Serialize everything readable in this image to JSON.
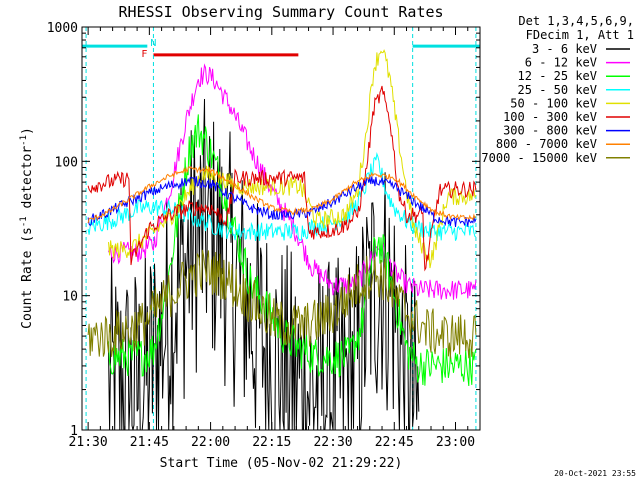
{
  "chart_data": {
    "type": "line",
    "title": "RHESSI Observing Summary Count Rates",
    "xlabel": "Start Time (05-Nov-02 21:29:22)",
    "ylabel": "Count Rate (s",
    "ylabel_sup": "-1",
    "ylabel_mid": " detector",
    "ylabel_sup2": "-1",
    "ylabel_end": ")",
    "y_scale": "log",
    "xlim": [
      -1.5,
      96
    ],
    "ylim": [
      1,
      1000
    ],
    "x_ticks": [
      {
        "value": 0,
        "label": "21:30"
      },
      {
        "value": 15,
        "label": "21:45"
      },
      {
        "value": 30,
        "label": "22:00"
      },
      {
        "value": 45,
        "label": "22:15"
      },
      {
        "value": 60,
        "label": "22:30"
      },
      {
        "value": 75,
        "label": "22:45"
      },
      {
        "value": 90,
        "label": "23:00"
      }
    ],
    "y_ticks": [
      {
        "value": 1,
        "label": "1"
      },
      {
        "value": 10,
        "label": "10"
      },
      {
        "value": 100,
        "label": "100"
      },
      {
        "value": 1000,
        "label": "1000"
      }
    ],
    "legend_header": [
      "Det 1,3,4,5,6,9,",
      "FDecim 1, Att 1"
    ],
    "flags": [
      {
        "label": "N",
        "color": "#00e0e0",
        "intervals": [
          [
            -1.5,
            14.5
          ],
          [
            79.5,
            96
          ]
        ],
        "y": 720
      },
      {
        "label": "F",
        "color": "#e00000",
        "intervals": [
          [
            16,
            51.5
          ]
        ],
        "y": 620
      }
    ],
    "vlines": [
      -0.5,
      16,
      79.5,
      95
    ],
    "series": [
      {
        "name": "3 - 6 keV",
        "color": "#000000",
        "amp": 1.0,
        "x": [
          5,
          9,
          13,
          17,
          21,
          26,
          29,
          33,
          37,
          41,
          45,
          49,
          53,
          57,
          62,
          66,
          69,
          72,
          75,
          77,
          79,
          81
        ],
        "y": [
          2,
          2,
          2,
          4,
          10,
          24,
          31,
          22,
          12,
          6,
          3.5,
          2.5,
          2,
          2,
          2,
          3,
          10,
          15,
          8,
          3,
          1.8,
          1.2
        ]
      },
      {
        "name": "6 - 12 keV",
        "color": "#ff00ff",
        "amp": 0.08,
        "x": [
          5,
          9,
          12,
          16,
          20,
          24,
          27,
          29,
          31,
          35,
          40,
          45,
          50,
          55,
          60,
          65,
          67,
          69,
          71,
          73,
          75,
          78,
          81,
          84,
          88,
          92,
          95
        ],
        "y": [
          21,
          21,
          21,
          24,
          60,
          200,
          420,
          450,
          400,
          250,
          120,
          60,
          34,
          16,
          12,
          12,
          14,
          18,
          23,
          20,
          15,
          12,
          11,
          11,
          11,
          11,
          11
        ]
      },
      {
        "name": "12 - 25 keV",
        "color": "#00ff00",
        "amp": 0.15,
        "x": [
          5,
          9,
          13,
          16,
          19,
          23,
          25,
          27,
          29,
          32,
          36,
          40,
          44,
          48,
          52,
          56,
          60,
          64,
          67,
          69,
          71,
          73,
          75,
          78,
          81,
          84,
          88,
          92,
          95
        ],
        "y": [
          3.5,
          3.5,
          3.5,
          4,
          10,
          60,
          130,
          170,
          140,
          80,
          30,
          12,
          8,
          5,
          4,
          3.5,
          3.5,
          3.5,
          6,
          15,
          26,
          18,
          10,
          4,
          3,
          3,
          3,
          3,
          3
        ]
      },
      {
        "name": "25 - 50 keV",
        "color": "#00ffff",
        "amp": 0.07,
        "x": [
          0,
          5,
          9,
          12,
          16,
          20,
          24,
          28,
          32,
          36,
          40,
          44,
          48,
          52,
          56,
          60,
          64,
          67,
          69,
          71,
          73,
          75,
          78,
          81,
          84,
          88,
          92,
          95
        ],
        "y": [
          32,
          36,
          40,
          44,
          46,
          44,
          40,
          36,
          32,
          30,
          30,
          30,
          30,
          30,
          33,
          35,
          40,
          55,
          80,
          100,
          60,
          45,
          36,
          32,
          30,
          30,
          30,
          30
        ]
      },
      {
        "name": "50 - 100 keV",
        "color": "#e0e000",
        "amp": 0.07,
        "x": [
          5,
          9,
          12,
          16,
          20,
          24,
          27,
          29,
          32,
          36,
          40,
          44,
          48,
          52,
          56,
          60,
          63,
          66,
          68,
          70,
          72,
          74,
          76,
          78,
          80,
          84,
          88,
          92,
          95
        ],
        "y": [
          22,
          22,
          24,
          30,
          38,
          55,
          75,
          80,
          75,
          66,
          65,
          65,
          65,
          65,
          36,
          38,
          40,
          60,
          150,
          500,
          720,
          400,
          150,
          60,
          30,
          18,
          55,
          55,
          55
        ]
      },
      {
        "name": "100 - 300 keV",
        "color": "#e00000",
        "amp": 0.06,
        "x": [
          0,
          5,
          10,
          10.5,
          15,
          20,
          25,
          30,
          34,
          36,
          38,
          42,
          46,
          50,
          53,
          54,
          58,
          62,
          66,
          68,
          70,
          72,
          74,
          76,
          78,
          79.5,
          82,
          82.5,
          86,
          90,
          95
        ],
        "y": [
          65,
          70,
          75,
          18,
          32,
          40,
          45,
          45,
          36,
          75,
          75,
          75,
          75,
          75,
          75,
          30,
          30,
          32,
          40,
          80,
          250,
          330,
          200,
          60,
          40,
          40,
          40,
          15,
          60,
          62,
          62
        ]
      },
      {
        "name": "300 - 800 keV",
        "color": "#0000ff",
        "amp": 0.04,
        "x": [
          0,
          5,
          10,
          15,
          20,
          25,
          30,
          35,
          40,
          45,
          50,
          55,
          60,
          65,
          70,
          75,
          80,
          85,
          90,
          95
        ],
        "y": [
          36,
          42,
          50,
          58,
          66,
          72,
          68,
          55,
          45,
          40,
          40,
          42,
          50,
          62,
          72,
          65,
          50,
          38,
          35,
          36
        ]
      },
      {
        "name": "800 - 7000 keV",
        "color": "#ff8000",
        "amp": 0.02,
        "x": [
          0,
          5,
          10,
          15,
          20,
          25,
          30,
          35,
          40,
          45,
          50,
          55,
          60,
          65,
          70,
          75,
          80,
          85,
          90,
          95
        ],
        "y": [
          36,
          42,
          52,
          65,
          78,
          88,
          85,
          70,
          55,
          45,
          42,
          44,
          52,
          68,
          80,
          76,
          55,
          42,
          38,
          38
        ]
      },
      {
        "name": "7000 - 15000 keV",
        "color": "#808000",
        "amp": 0.18,
        "x": [
          0,
          5,
          9,
          13,
          17,
          21,
          25,
          29,
          33,
          37,
          41,
          45,
          49,
          53,
          57,
          61,
          65,
          69,
          72,
          75,
          79,
          83,
          87,
          91,
          95
        ],
        "y": [
          5,
          5,
          5.5,
          6,
          8,
          11,
          14,
          15.5,
          14,
          11,
          8.5,
          6.5,
          6,
          6,
          6.5,
          8,
          11,
          14.5,
          14,
          10,
          7,
          5.5,
          5,
          5,
          5
        ]
      }
    ]
  },
  "footer": {
    "timestamp": "20-Oct-2021 23:55"
  }
}
